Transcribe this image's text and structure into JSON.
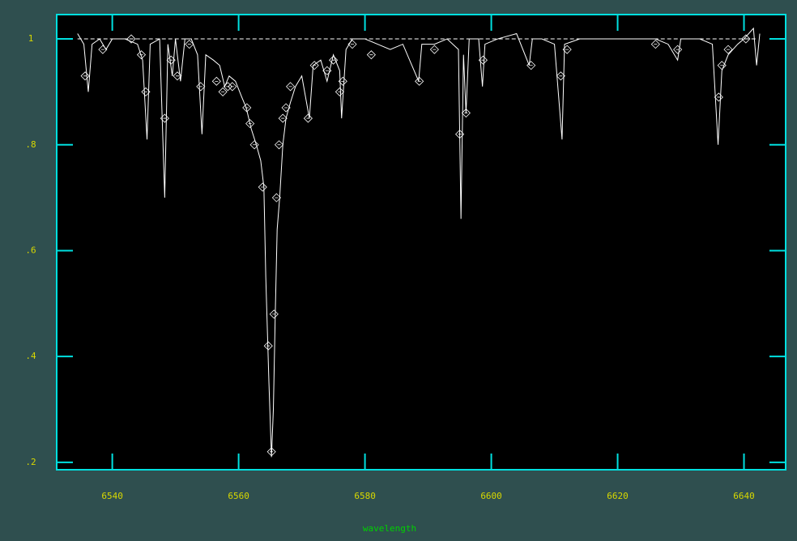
{
  "chart_data": {
    "type": "line",
    "xlabel": "wavelength",
    "xlim": [
      6531.2,
      6646.6
    ],
    "ylim": [
      0.186,
      1.046
    ],
    "xticks": [
      6540,
      6560,
      6580,
      6600,
      6620,
      6640
    ],
    "yticks": [
      {
        "value": 0.2,
        "label": ".2"
      },
      {
        "value": 0.4,
        "label": ".4"
      },
      {
        "value": 0.6,
        "label": ".6"
      },
      {
        "value": 0.8,
        "label": ".8"
      },
      1
    ],
    "frame_color": "#00e0e0",
    "tick_label_color": "#d8d800",
    "axis_label_color": "#00d000",
    "series": [
      {
        "color": "#ffffff",
        "style": "solid",
        "x": [
          6534.5,
          6535.5,
          6536.2,
          6536.8,
          6538,
          6539,
          6540,
          6542,
          6544,
          6544.8,
          6545.5,
          6546,
          6547.5,
          6548.3,
          6548.8,
          6549.5,
          6550,
          6550.8,
          6551.5,
          6552.5,
          6553.5,
          6554.2,
          6554.8,
          6556,
          6557,
          6557.8,
          6558.5,
          6559.5,
          6560.5,
          6561.2,
          6562,
          6562.8,
          6563.5,
          6564,
          6564.3,
          6564.8,
          6565.2,
          6565.5,
          6565.8,
          6566.1,
          6566.5,
          6567,
          6567.5,
          6568.2,
          6569,
          6570,
          6571.2,
          6571.8,
          6573,
          6574,
          6575,
          6576,
          6576.3,
          6577,
          6578,
          6580,
          6582,
          6584,
          6586,
          6588.5,
          6589,
          6591,
          6593,
          6594.8,
          6595.2,
          6595.6,
          6596,
          6596.5,
          6598,
          6598.6,
          6599,
          6601,
          6604,
          6606,
          6606.5,
          6608,
          6610,
          6611.2,
          6611.6,
          6614,
          6618,
          6622,
          6626,
          6628,
          6629.5,
          6630,
          6633,
          6635,
          6635.9,
          6636.5,
          6637.5,
          6639,
          6640,
          6641.5,
          6642,
          6642.5
        ],
        "values": [
          1.01,
          0.99,
          0.9,
          0.99,
          1.0,
          0.98,
          1.0,
          1.0,
          0.99,
          0.96,
          0.81,
          0.99,
          1.0,
          0.7,
          0.99,
          0.93,
          1.0,
          0.92,
          1.0,
          1.0,
          0.97,
          0.82,
          0.97,
          0.96,
          0.95,
          0.91,
          0.93,
          0.92,
          0.89,
          0.87,
          0.83,
          0.8,
          0.77,
          0.72,
          0.55,
          0.35,
          0.21,
          0.3,
          0.48,
          0.64,
          0.7,
          0.8,
          0.85,
          0.88,
          0.91,
          0.93,
          0.85,
          0.95,
          0.96,
          0.92,
          0.97,
          0.94,
          0.85,
          0.98,
          1.0,
          1.0,
          0.99,
          0.98,
          0.99,
          0.92,
          0.99,
          0.99,
          1.0,
          0.98,
          0.66,
          0.97,
          0.86,
          1.0,
          1.0,
          0.91,
          0.99,
          1.0,
          1.01,
          0.95,
          1.0,
          1.0,
          0.99,
          0.81,
          0.99,
          1.0,
          1.0,
          1.0,
          1.0,
          0.99,
          0.96,
          1.0,
          1.0,
          0.99,
          0.8,
          0.94,
          0.97,
          0.99,
          1.0,
          1.02,
          0.95,
          1.01
        ]
      },
      {
        "color": "#ffffff",
        "style": "diamond",
        "x": [
          6535.7,
          6538.5,
          6543,
          6544.6,
          6545.3,
          6548.3,
          6549.3,
          6550.3,
          6552.2,
          6554,
          6556.5,
          6557.5,
          6558.3,
          6559,
          6561.3,
          6561.8,
          6562.5,
          6563.8,
          6564.7,
          6565.2,
          6565.6,
          6566,
          6566.4,
          6567,
          6567.5,
          6568.2,
          6571,
          6572,
          6574,
          6575,
          6576,
          6576.5,
          6578,
          6581,
          6588.6,
          6591,
          6595,
          6596,
          6598.7,
          6606.3,
          6611,
          6612,
          6626,
          6629.5,
          6636,
          6636.5,
          6637.5,
          6640.3
        ],
        "values": [
          0.93,
          0.98,
          1.0,
          0.97,
          0.9,
          0.85,
          0.96,
          0.93,
          0.99,
          0.91,
          0.92,
          0.9,
          0.91,
          0.91,
          0.87,
          0.84,
          0.8,
          0.72,
          0.42,
          0.22,
          0.48,
          0.7,
          0.8,
          0.85,
          0.87,
          0.91,
          0.85,
          0.95,
          0.94,
          0.96,
          0.9,
          0.92,
          0.99,
          0.97,
          0.92,
          0.98,
          0.82,
          0.86,
          0.96,
          0.95,
          0.93,
          0.98,
          0.99,
          0.98,
          0.89,
          0.95,
          0.98,
          1.0
        ]
      },
      {
        "color": "#ffffff",
        "style": "dashed",
        "x": [
          6534.5,
          6642
        ],
        "values": [
          1,
          1
        ]
      }
    ]
  }
}
